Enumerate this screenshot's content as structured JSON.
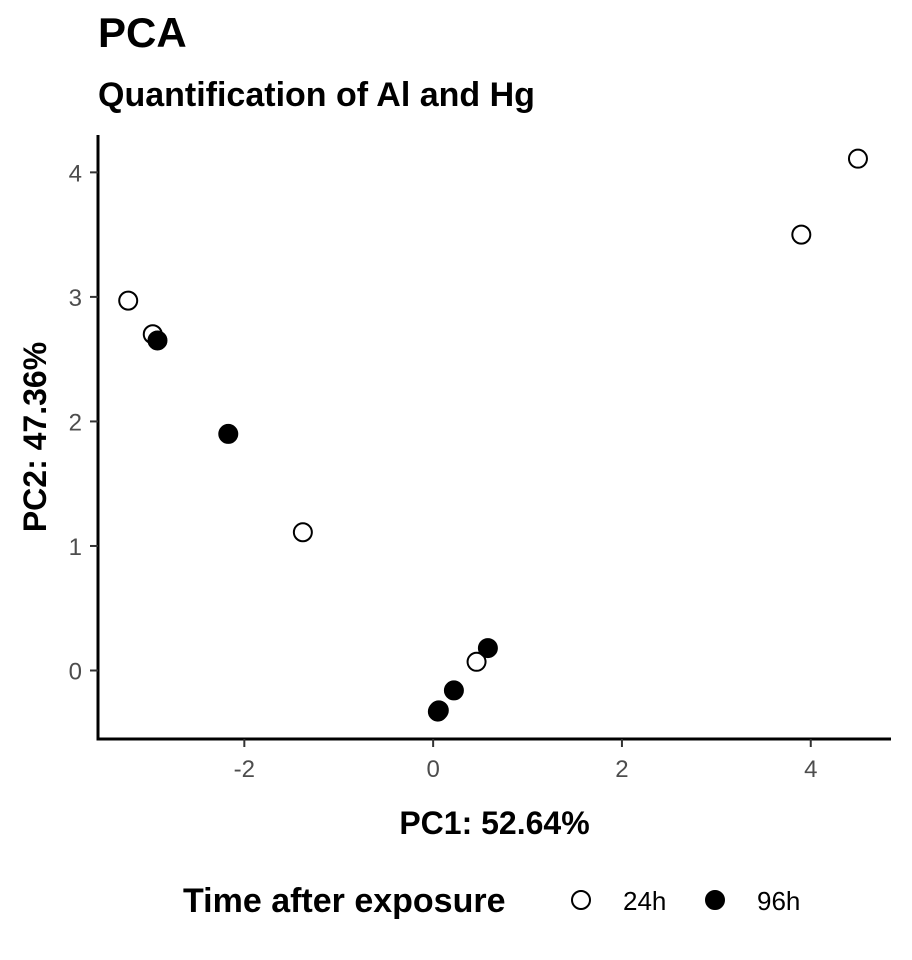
{
  "chart_data": {
    "type": "scatter",
    "title": "PCA",
    "subtitle": "Quantification of Al and Hg",
    "xlabel": "PC1: 52.64%",
    "ylabel": "PC2: 47.36%",
    "xlim": [
      -3.55,
      4.85
    ],
    "ylim": [
      -0.55,
      4.3
    ],
    "x_ticks": [
      -2,
      0,
      2,
      4
    ],
    "y_ticks": [
      0,
      1,
      2,
      3,
      4
    ],
    "grid": false,
    "legend": {
      "title": "Time after exposure",
      "position": "bottom"
    },
    "series": [
      {
        "name": "24h",
        "marker": "open-circle",
        "color": "#000000",
        "fill": "#ffffff",
        "points": [
          {
            "x": -3.23,
            "y": 2.97
          },
          {
            "x": -2.97,
            "y": 2.7
          },
          {
            "x": -1.38,
            "y": 1.11
          },
          {
            "x": 0.46,
            "y": 0.07
          },
          {
            "x": 3.9,
            "y": 3.5
          },
          {
            "x": 4.5,
            "y": 4.11
          }
        ]
      },
      {
        "name": "96h",
        "marker": "filled-circle",
        "color": "#000000",
        "fill": "#000000",
        "points": [
          {
            "x": -2.92,
            "y": 2.65
          },
          {
            "x": -2.17,
            "y": 1.9
          },
          {
            "x": 0.05,
            "y": -0.33
          },
          {
            "x": 0.06,
            "y": -0.32
          },
          {
            "x": 0.22,
            "y": -0.16
          },
          {
            "x": 0.58,
            "y": 0.18
          }
        ]
      }
    ]
  }
}
